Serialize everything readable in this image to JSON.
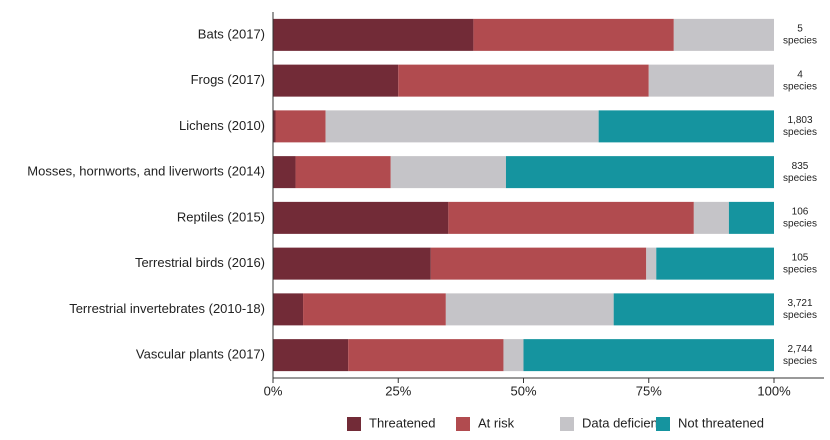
{
  "chart_data": {
    "type": "stacked-bar-horizontal",
    "categories": [
      "Bats (2017)",
      "Frogs (2017)",
      "Lichens (2010)",
      "Mosses, hornworts, and liverworts (2014)",
      "Reptiles (2015)",
      "Terrestrial birds (2016)",
      "Terrestrial invertebrates (2010-18)",
      "Vascular plants (2017)"
    ],
    "series": [
      {
        "name": "Threatened",
        "color": "#722b37",
        "values": [
          40,
          25,
          0.5,
          4.5,
          35,
          31.5,
          6,
          15
        ]
      },
      {
        "name": "At risk",
        "color": "#b14b4f",
        "values": [
          40,
          50,
          10,
          19,
          49,
          43,
          28.5,
          31
        ]
      },
      {
        "name": "Data deficient",
        "color": "#c5c4c8",
        "values": [
          20,
          25,
          54.5,
          23,
          7,
          2,
          33.5,
          4
        ]
      },
      {
        "name": "Not threatened",
        "color": "#15949f",
        "values": [
          0,
          0,
          35,
          53.5,
          9,
          23.5,
          32,
          50
        ]
      }
    ],
    "annotations": [
      {
        "count": "5",
        "unit": "species"
      },
      {
        "count": "4",
        "unit": "species"
      },
      {
        "count": "1,803",
        "unit": "species"
      },
      {
        "count": "835",
        "unit": "species"
      },
      {
        "count": "106",
        "unit": "species"
      },
      {
        "count": "105",
        "unit": "species"
      },
      {
        "count": "3,721",
        "unit": "species"
      },
      {
        "count": "2,744",
        "unit": "species"
      }
    ],
    "xlim": [
      0,
      100
    ],
    "xticks": [
      {
        "value": 0,
        "label": "0%"
      },
      {
        "value": 25,
        "label": "25%"
      },
      {
        "value": 50,
        "label": "50%"
      },
      {
        "value": 75,
        "label": "75%"
      },
      {
        "value": 100,
        "label": "100%"
      }
    ],
    "legend": "bottom"
  }
}
